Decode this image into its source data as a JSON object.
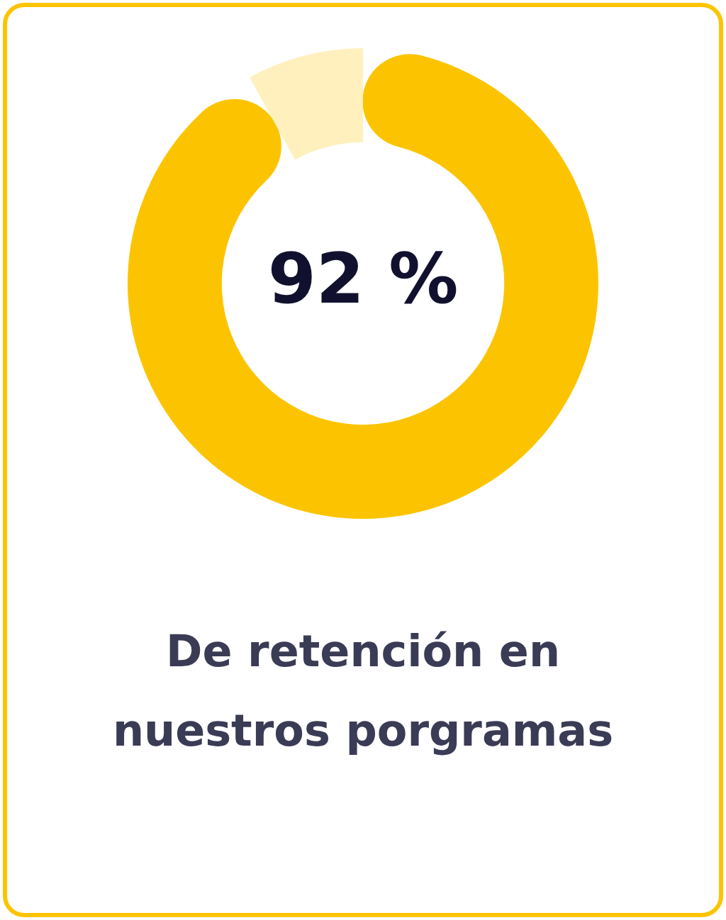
{
  "chart_data": {
    "type": "donut",
    "categories": [
      null,
      null
    ],
    "values": [
      92,
      8
    ],
    "colors": [
      "#fcc400",
      "#fff0be"
    ],
    "value_labels": [
      "92 %",
      null
    ],
    "title": "De retención en nuestros porgramas",
    "legend": false
  }
}
